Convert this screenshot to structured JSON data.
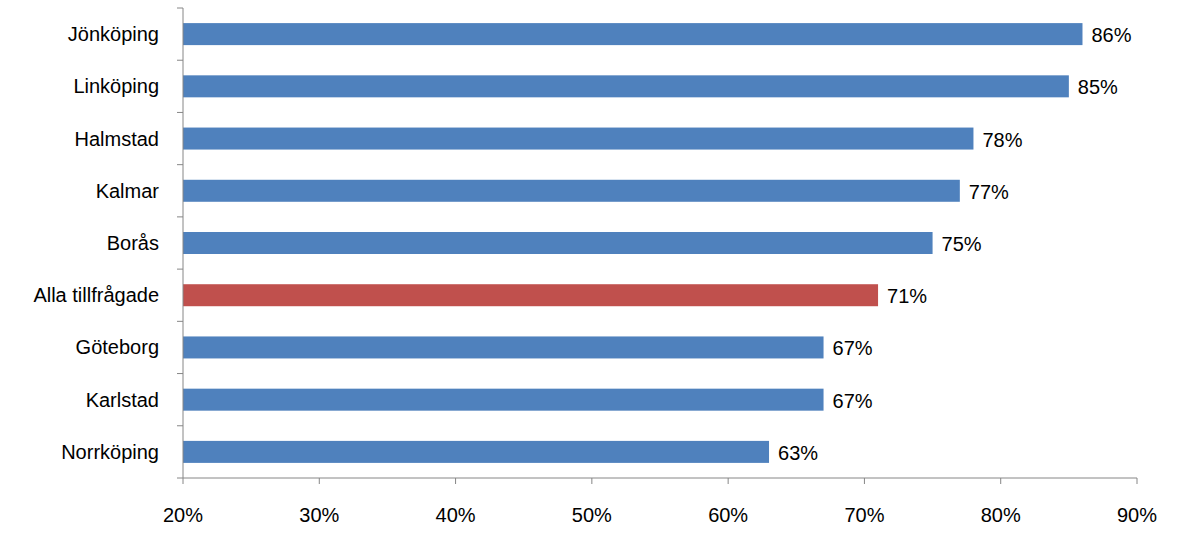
{
  "chart_data": {
    "type": "bar",
    "orientation": "horizontal",
    "categories": [
      "Jönköping",
      "Linköping",
      "Halmstad",
      "Kalmar",
      "Borås",
      "Alla tillfrågade",
      "Göteborg",
      "Karlstad",
      "Norrköping"
    ],
    "values": [
      86,
      85,
      78,
      77,
      75,
      71,
      67,
      67,
      63
    ],
    "value_labels": [
      "86%",
      "85%",
      "78%",
      "77%",
      "75%",
      "71%",
      "67%",
      "67%",
      "63%"
    ],
    "colors": [
      "#4f81bd",
      "#4f81bd",
      "#4f81bd",
      "#4f81bd",
      "#4f81bd",
      "#c0504d",
      "#4f81bd",
      "#4f81bd",
      "#4f81bd"
    ],
    "xlim": [
      20,
      90
    ],
    "xticks": [
      {
        "value": 20,
        "label": "20%"
      },
      {
        "value": 30,
        "label": "30%"
      },
      {
        "value": 40,
        "label": "40%"
      },
      {
        "value": 50,
        "label": "50%"
      },
      {
        "value": 60,
        "label": "60%"
      },
      {
        "value": 70,
        "label": "70%"
      },
      {
        "value": 80,
        "label": "80%"
      },
      {
        "value": 90,
        "label": "90%"
      }
    ],
    "grid": false,
    "data_labels": true
  }
}
